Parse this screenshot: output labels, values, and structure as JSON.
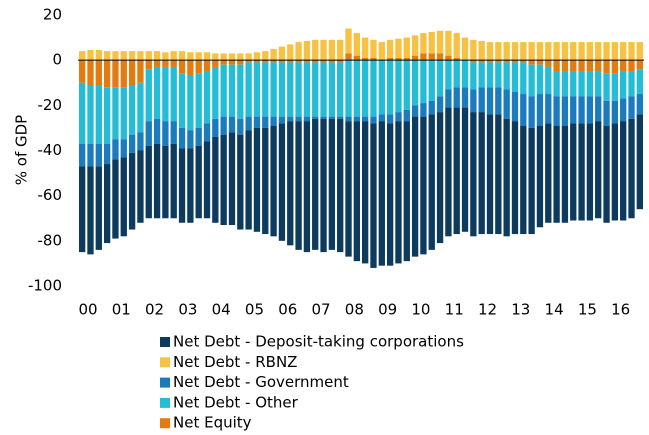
{
  "chart_data": {
    "type": "stacked_bar",
    "ylabel": "% of GDP",
    "ylim": [
      -100,
      20
    ],
    "yticks": [
      -100,
      -80,
      -60,
      -40,
      -20,
      0,
      20
    ],
    "categories": [
      "00",
      null,
      null,
      null,
      "01",
      null,
      null,
      null,
      "02",
      null,
      null,
      null,
      "03",
      null,
      null,
      null,
      "04",
      null,
      null,
      null,
      "05",
      null,
      null,
      null,
      "06",
      null,
      null,
      null,
      "07",
      null,
      null,
      null,
      "08",
      null,
      null,
      null,
      "09",
      null,
      null,
      null,
      "10",
      null,
      null,
      null,
      "11",
      null,
      null,
      null,
      "12",
      null,
      null,
      null,
      "13",
      null,
      null,
      null,
      "14",
      null,
      null,
      null,
      "15",
      null,
      null,
      null,
      "16",
      null,
      null,
      null
    ],
    "series": [
      {
        "name": "Net Debt - Deposit-taking corporations",
        "color": "#0d3b5e",
        "values": [
          -38,
          -39,
          -37,
          -35,
          -35,
          -35,
          -34,
          -32,
          -32,
          -33,
          -32,
          -33,
          -33,
          -33,
          -32,
          -34,
          -38,
          -40,
          -41,
          -42,
          -44,
          -46,
          -47,
          -49,
          -52,
          -55,
          -57,
          -58,
          -58,
          -59,
          -58,
          -59,
          -60,
          -62,
          -63,
          -64,
          -64,
          -63,
          -63,
          -62,
          -62,
          -61,
          -60,
          -58,
          -57,
          -56,
          -55,
          -55,
          -54,
          -53,
          -53,
          -52,
          -50,
          -48,
          -47,
          -45,
          -44,
          -43,
          -43,
          -43,
          -43,
          -43,
          -43,
          -43,
          -43,
          -44,
          -44,
          -42
        ]
      },
      {
        "name": "Net Debt - RBNZ",
        "color": "#f7c244",
        "values": [
          4,
          4.5,
          4.5,
          4,
          4,
          4,
          4,
          4,
          4,
          4,
          3.5,
          4,
          4,
          3.5,
          3.5,
          3.5,
          3,
          3,
          3,
          3,
          3,
          3.5,
          4,
          5,
          6,
          7,
          8,
          8.5,
          9,
          9,
          9,
          9,
          11,
          10,
          9,
          8,
          8,
          8,
          8.5,
          9,
          9,
          9,
          9.5,
          10,
          11,
          11,
          10,
          9,
          8.5,
          8,
          8,
          8,
          8,
          8,
          8,
          8,
          8,
          8,
          8,
          8,
          8,
          8,
          8,
          8,
          8,
          8,
          8,
          8
        ]
      },
      {
        "name": "Net Debt - Government",
        "color": "#1b7bbf",
        "values": [
          -10,
          -10,
          -10,
          -9,
          -9,
          -8,
          -8,
          -8,
          -11,
          -11,
          -11,
          -10,
          -9,
          -8,
          -8,
          -8,
          -8,
          -8,
          -7,
          -7,
          -6,
          -5,
          -5,
          -4,
          -3,
          -2,
          -2,
          -2,
          -1,
          -1,
          -1,
          -1,
          -2,
          -2,
          -2,
          -3,
          -3,
          -4,
          -4,
          -5,
          -5,
          -6,
          -6,
          -7,
          -8,
          -9,
          -9,
          -10,
          -11,
          -12,
          -12,
          -13,
          -13,
          -14,
          -14,
          -14,
          -13,
          -13,
          -13,
          -12,
          -12,
          -12,
          -11,
          -11,
          -10,
          -10,
          -10,
          -9
        ]
      },
      {
        "name": "Net Debt - Other",
        "color": "#25bdd5",
        "values": [
          -27,
          -26,
          -26,
          -25,
          -23,
          -23,
          -22,
          -22,
          -23,
          -23,
          -24,
          -24,
          -24,
          -24,
          -24,
          -23,
          -23,
          -23,
          -23,
          -24,
          -24,
          -24,
          -24,
          -24,
          -24,
          -24,
          -24,
          -24,
          -24,
          -24,
          -24,
          -24,
          -25,
          -25,
          -25,
          -25,
          -24,
          -24,
          -23,
          -22,
          -20,
          -19,
          -18,
          -16,
          -13,
          -12,
          -12,
          -12,
          -11,
          -11,
          -11,
          -12,
          -13,
          -14,
          -14,
          -13,
          -12,
          -11,
          -11,
          -11,
          -11,
          -11,
          -11,
          -12,
          -12,
          -12,
          -11,
          -11
        ]
      },
      {
        "name": "Net Equity",
        "color": "#e27c10",
        "values": [
          -10,
          -11,
          -11,
          -12,
          -12,
          -12,
          -11,
          -10,
          -4,
          -3,
          -3,
          -3,
          -6,
          -7,
          -6,
          -5,
          -3,
          -2,
          -2,
          -2,
          -1,
          -1,
          -1,
          -1,
          -1,
          -1,
          -1,
          -1,
          -1,
          -1,
          -1,
          -1,
          3,
          2,
          1,
          1,
          0,
          1,
          1,
          1,
          2,
          3,
          3,
          3,
          2,
          1,
          0,
          -1,
          -1,
          -1,
          -1,
          -1,
          -1,
          -1,
          -2,
          -2,
          -3,
          -5,
          -5,
          -5,
          -5,
          -5,
          -5,
          -6,
          -6,
          -5,
          -5,
          -4
        ]
      }
    ]
  }
}
